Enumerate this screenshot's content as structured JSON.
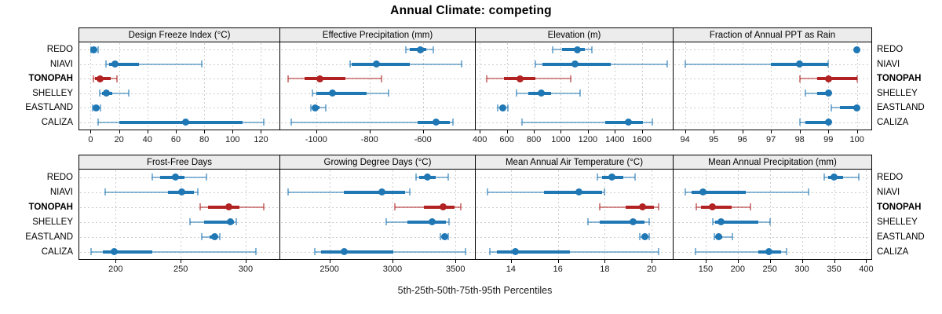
{
  "title": "Annual Climate: competing",
  "caption": "5th-25th-50th-75th-95th Percentiles",
  "colors": {
    "default_series": "#1f77b4",
    "highlight_series": "#b22222",
    "strip_bg": "#ececec",
    "grid": "#cdcdcd",
    "panel_border": "#000000"
  },
  "rows": [
    "REDO",
    "NIAVI",
    "TONOPAH",
    "SHELLEY",
    "EASTLAND",
    "CALIZA"
  ],
  "highlight_row": "TONOPAH",
  "chart_data": {
    "type": "dotplot",
    "layout": {
      "columns": 4,
      "rows": 2,
      "grid": "dashed",
      "row_labels_left": true,
      "row_labels_right": true
    },
    "statistics": [
      "p5",
      "p25",
      "p50",
      "p75",
      "p95"
    ],
    "panels": [
      {
        "title": "Design Freeze Index (°C)",
        "xlim": [
          -8,
          133
        ],
        "ticks": [
          0,
          20,
          40,
          60,
          80,
          100,
          120
        ],
        "series": [
          {
            "name": "REDO",
            "values": [
              0.5,
              1,
              2.5,
              4,
              5
            ]
          },
          {
            "name": "NIAVI",
            "values": [
              11,
              13,
              17,
              34,
              78
            ]
          },
          {
            "name": "TONOPAH",
            "values": [
              2,
              3,
              6.5,
              14,
              18.5
            ]
          },
          {
            "name": "SHELLEY",
            "values": [
              6.5,
              8,
              11,
              15,
              27
            ]
          },
          {
            "name": "EASTLAND",
            "values": [
              1.5,
              2.5,
              4,
              5.5,
              7
            ]
          },
          {
            "name": "CALIZA",
            "values": [
              5,
              20,
              67,
              107,
              122
            ]
          }
        ]
      },
      {
        "title": "Effective Precipitation (mm)",
        "xlim": [
          -1135,
          -405
        ],
        "ticks": [
          -1000,
          -800,
          -600
        ],
        "series": [
          {
            "name": "REDO",
            "values": [
              -665,
              -650,
              -610,
              -588,
              -560
            ]
          },
          {
            "name": "NIAVI",
            "values": [
              -873,
              -866,
              -775,
              -650,
              -455
            ]
          },
          {
            "name": "TONOPAH",
            "values": [
              -1105,
              -1045,
              -985,
              -890,
              -755
            ]
          },
          {
            "name": "SHELLEY",
            "values": [
              -1015,
              -1000,
              -940,
              -810,
              -730
            ]
          },
          {
            "name": "EASTLAND",
            "values": [
              -1020,
              -1012,
              -1003,
              -988,
              -963
            ]
          },
          {
            "name": "CALIZA",
            "values": [
              -1095,
              -620,
              -550,
              -500,
              -488
            ]
          }
        ]
      },
      {
        "title": "Elevation (m)",
        "xlim": [
          370,
          1828
        ],
        "ticks": [
          400,
          600,
          800,
          1000,
          1200,
          1400,
          1600
        ],
        "series": [
          {
            "name": "REDO",
            "values": [
              940,
              1010,
              1120,
              1175,
              1230
            ]
          },
          {
            "name": "NIAVI",
            "values": [
              810,
              865,
              1105,
              1370,
              1790
            ]
          },
          {
            "name": "TONOPAH",
            "values": [
              450,
              580,
              700,
              810,
              1075
            ]
          },
          {
            "name": "SHELLEY",
            "values": [
              670,
              760,
              855,
              925,
              1145
            ]
          },
          {
            "name": "EASTLAND",
            "values": [
              535,
              548,
              568,
              590,
              610
            ]
          },
          {
            "name": "CALIZA",
            "values": [
              715,
              1330,
              1500,
              1610,
              1675
            ]
          }
        ]
      },
      {
        "title": "Fraction of Annual PPT as Rain",
        "xlim": [
          93.6,
          100.5
        ],
        "ticks": [
          94,
          95,
          96,
          97,
          98,
          99,
          100
        ],
        "series": [
          {
            "name": "REDO",
            "values": [
              100,
              100,
              100,
              100,
              100
            ]
          },
          {
            "name": "NIAVI",
            "values": [
              94,
              97,
              98,
              99,
              99
            ]
          },
          {
            "name": "TONOPAH",
            "values": [
              98,
              98.6,
              99,
              100,
              100
            ]
          },
          {
            "name": "SHELLEY",
            "values": [
              98.2,
              98.6,
              99,
              99,
              99
            ]
          },
          {
            "name": "EASTLAND",
            "values": [
              99.1,
              99.4,
              100,
              100,
              100
            ]
          },
          {
            "name": "CALIZA",
            "values": [
              98,
              98.2,
              99,
              99,
              99
            ]
          }
        ]
      },
      {
        "title": "Frost-Free Days",
        "xlim": [
          172,
          326
        ],
        "ticks": [
          200,
          250,
          300
        ],
        "series": [
          {
            "name": "REDO",
            "values": [
              228,
              234,
              246,
              253,
              270
            ]
          },
          {
            "name": "NIAVI",
            "values": [
              192,
              240,
              251,
              260,
              263
            ]
          },
          {
            "name": "TONOPAH",
            "values": [
              265,
              271,
              287,
              295,
              314
            ]
          },
          {
            "name": "SHELLEY",
            "values": [
              257,
              268,
              288,
              291,
              293
            ]
          },
          {
            "name": "EASTLAND",
            "values": [
              266,
              272,
              276,
              278,
              280
            ]
          },
          {
            "name": "CALIZA",
            "values": [
              181,
              190,
              199,
              228,
              308
            ]
          }
        ]
      },
      {
        "title": "Growing Degree Days (°C)",
        "xlim": [
          2110,
          3654
        ],
        "ticks": [
          2500,
          3000,
          3500
        ],
        "series": [
          {
            "name": "REDO",
            "values": [
              3185,
              3215,
              3280,
              3340,
              3440
            ]
          },
          {
            "name": "NIAVI",
            "values": [
              2175,
              2615,
              2915,
              3100,
              3140
            ]
          },
          {
            "name": "TONOPAH",
            "values": [
              3020,
              3250,
              3400,
              3490,
              3540
            ]
          },
          {
            "name": "SHELLEY",
            "values": [
              2950,
              3120,
              3315,
              3425,
              3450
            ]
          },
          {
            "name": "EASTLAND",
            "values": [
              3380,
              3400,
              3415,
              3430,
              3445
            ]
          },
          {
            "name": "CALIZA",
            "values": [
              2385,
              2435,
              2620,
              3005,
              3580
            ]
          }
        ]
      },
      {
        "title": "Mean Annual Air Temperature (°C)",
        "xlim": [
          12.5,
          20.9
        ],
        "ticks": [
          14,
          16,
          18,
          20
        ],
        "series": [
          {
            "name": "REDO",
            "values": [
              17.7,
              17.9,
              18.3,
              18.8,
              19.3
            ]
          },
          {
            "name": "NIAVI",
            "values": [
              13.0,
              15.4,
              16.9,
              17.9,
              18.0
            ]
          },
          {
            "name": "TONOPAH",
            "values": [
              17.8,
              18.9,
              19.6,
              20.1,
              20.3
            ]
          },
          {
            "name": "SHELLEY",
            "values": [
              17.3,
              17.8,
              19.2,
              19.7,
              19.9
            ]
          },
          {
            "name": "EASTLAND",
            "values": [
              19.5,
              19.6,
              19.7,
              19.8,
              19.9
            ]
          },
          {
            "name": "CALIZA",
            "values": [
              13.1,
              13.4,
              14.2,
              16.5,
              20.3
            ]
          }
        ]
      },
      {
        "title": "Mean Annual Precipitation (mm)",
        "xlim": [
          100,
          408
        ],
        "ticks": [
          150,
          200,
          250,
          300,
          350,
          400
        ],
        "series": [
          {
            "name": "REDO",
            "values": [
              335,
              341,
              350,
              364,
              388
            ]
          },
          {
            "name": "NIAVI",
            "values": [
              118,
              128,
              146,
              212,
              310
            ]
          },
          {
            "name": "TONOPAH",
            "values": [
              135,
              143,
              160,
              190,
              220
            ]
          },
          {
            "name": "SHELLEY",
            "values": [
              161,
              165,
              174,
              232,
              250
            ]
          },
          {
            "name": "EASTLAND",
            "values": [
              164,
              166,
              170,
              176,
              192
            ]
          },
          {
            "name": "CALIZA",
            "values": [
              134,
              232,
              249,
              268,
              276
            ]
          }
        ]
      }
    ]
  }
}
